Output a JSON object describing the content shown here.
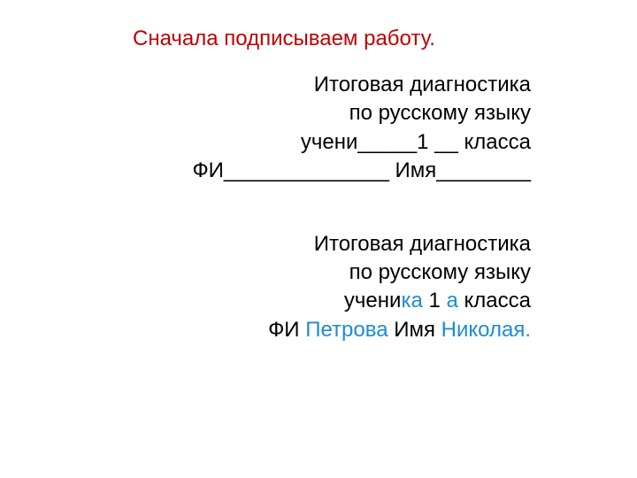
{
  "colors": {
    "title": "#c00000",
    "body_text": "#000000",
    "accent": "#1f8bd4",
    "background": "#ffffff"
  },
  "typography": {
    "font_family": "Arial",
    "title_fontsize": 24,
    "body_fontsize": 24,
    "line_height": 1.35
  },
  "title": "Сначала  подписываем работу.",
  "template": {
    "line1": "Итоговая диагностика",
    "line2": "по русскому языку",
    "line3": "учени_____1 __ класса",
    "line4": "ФИ______________ Имя________"
  },
  "example": {
    "line1": "Итоговая диагностика",
    "line2": "по русскому языку",
    "line3_pre": "учени",
    "line3_suffix": "ка",
    "line3_num": " 1 ",
    "line3_letter": "а",
    "line3_post": " класса",
    "line4_fi_label": "ФИ ",
    "line4_fi_value": "Петрова",
    "line4_name_label": " Имя ",
    "line4_name_value": "Николая."
  }
}
